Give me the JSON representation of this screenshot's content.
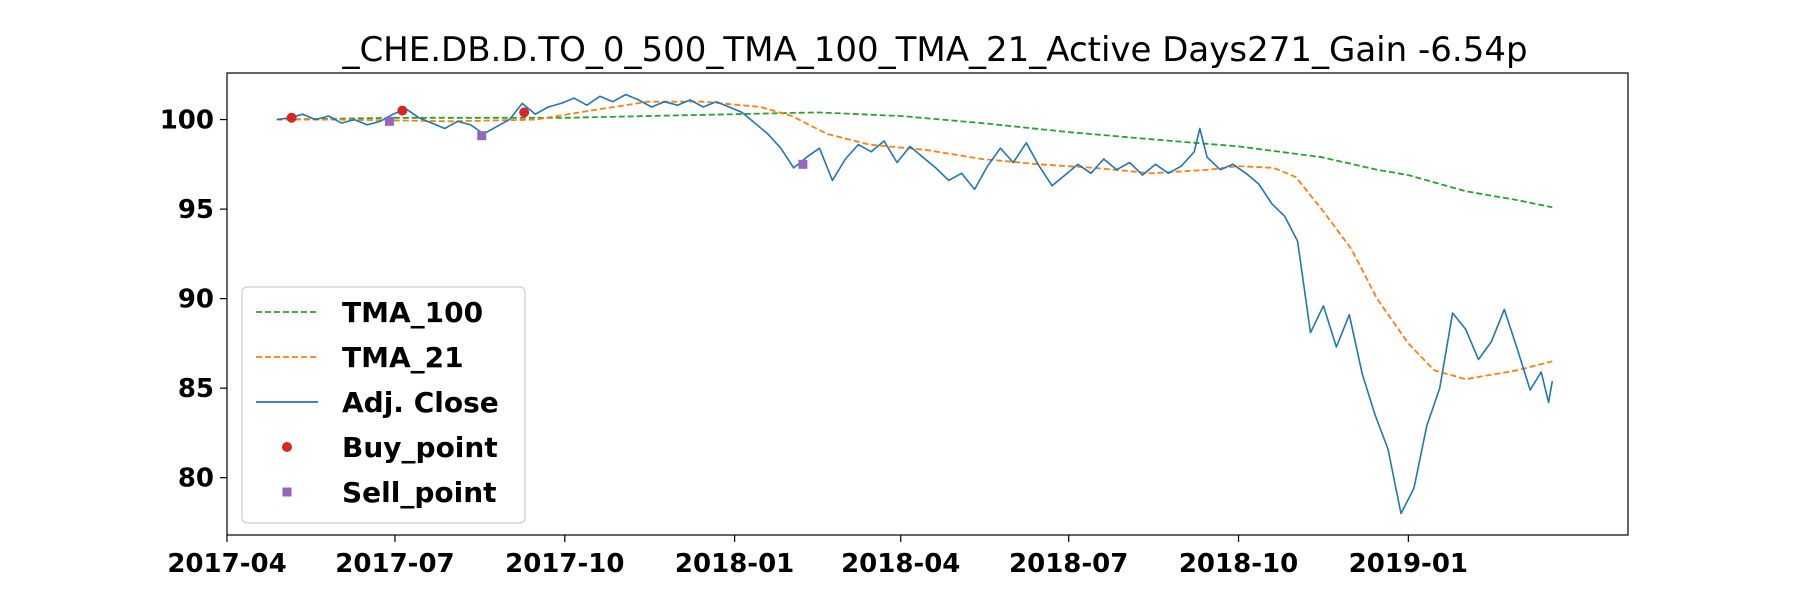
{
  "chart_data": {
    "type": "line",
    "title": "_CHE.DB.D.TO_0_500_TMA_100_TMA_21_Active Days271_Gain  -6.54p",
    "xlabel": "",
    "ylabel": "",
    "xlim": [
      "2017-04-01",
      "2019-04-30"
    ],
    "ylim": [
      76.8,
      102.6
    ],
    "x_ticks": [
      "2017-04",
      "2017-07",
      "2017-10",
      "2018-01",
      "2018-04",
      "2018-07",
      "2018-10",
      "2019-01"
    ],
    "y_ticks": [
      80,
      85,
      90,
      95,
      100
    ],
    "grid": false,
    "legend_position": "lower-left",
    "colors": {
      "adj_close": "#1f77b4",
      "tma_21": "#ff7f0e",
      "tma_100": "#2ca02c",
      "buy": "#d62728",
      "sell": "#9467bd"
    },
    "series": [
      {
        "name": "Adj. Close",
        "style": "solid",
        "points": [
          [
            "2017-04-28",
            100.0
          ],
          [
            "2017-05-05",
            100.1
          ],
          [
            "2017-05-12",
            100.3
          ],
          [
            "2017-05-19",
            100.0
          ],
          [
            "2017-05-26",
            100.2
          ],
          [
            "2017-06-02",
            99.8
          ],
          [
            "2017-06-09",
            100.0
          ],
          [
            "2017-06-16",
            99.7
          ],
          [
            "2017-06-23",
            99.9
          ],
          [
            "2017-06-30",
            100.3
          ],
          [
            "2017-07-07",
            100.6
          ],
          [
            "2017-07-14",
            100.1
          ],
          [
            "2017-07-21",
            99.8
          ],
          [
            "2017-07-28",
            99.5
          ],
          [
            "2017-08-04",
            99.9
          ],
          [
            "2017-08-11",
            99.7
          ],
          [
            "2017-08-18",
            99.2
          ],
          [
            "2017-08-25",
            99.6
          ],
          [
            "2017-09-01",
            100.0
          ],
          [
            "2017-09-08",
            100.9
          ],
          [
            "2017-09-15",
            100.3
          ],
          [
            "2017-09-22",
            100.7
          ],
          [
            "2017-09-29",
            100.9
          ],
          [
            "2017-10-06",
            101.2
          ],
          [
            "2017-10-13",
            100.8
          ],
          [
            "2017-10-20",
            101.3
          ],
          [
            "2017-10-27",
            101.0
          ],
          [
            "2017-11-03",
            101.4
          ],
          [
            "2017-11-10",
            101.1
          ],
          [
            "2017-11-17",
            100.7
          ],
          [
            "2017-11-24",
            101.0
          ],
          [
            "2017-12-01",
            100.8
          ],
          [
            "2017-12-08",
            101.1
          ],
          [
            "2017-12-15",
            100.7
          ],
          [
            "2017-12-22",
            101.0
          ],
          [
            "2017-12-29",
            100.7
          ],
          [
            "2018-01-05",
            100.4
          ],
          [
            "2018-01-12",
            99.8
          ],
          [
            "2018-01-19",
            99.2
          ],
          [
            "2018-01-26",
            98.4
          ],
          [
            "2018-02-02",
            97.3
          ],
          [
            "2018-02-09",
            97.9
          ],
          [
            "2018-02-16",
            98.4
          ],
          [
            "2018-02-23",
            96.6
          ],
          [
            "2018-03-02",
            97.8
          ],
          [
            "2018-03-09",
            98.6
          ],
          [
            "2018-03-16",
            98.2
          ],
          [
            "2018-03-23",
            98.8
          ],
          [
            "2018-03-30",
            97.6
          ],
          [
            "2018-04-06",
            98.5
          ],
          [
            "2018-04-13",
            97.9
          ],
          [
            "2018-04-20",
            97.3
          ],
          [
            "2018-04-27",
            96.6
          ],
          [
            "2018-05-04",
            97.0
          ],
          [
            "2018-05-11",
            96.1
          ],
          [
            "2018-05-18",
            97.4
          ],
          [
            "2018-05-25",
            98.4
          ],
          [
            "2018-06-01",
            97.6
          ],
          [
            "2018-06-08",
            98.7
          ],
          [
            "2018-06-15",
            97.4
          ],
          [
            "2018-06-22",
            96.3
          ],
          [
            "2018-06-29",
            96.9
          ],
          [
            "2018-07-06",
            97.5
          ],
          [
            "2018-07-13",
            97.0
          ],
          [
            "2018-07-20",
            97.8
          ],
          [
            "2018-07-27",
            97.2
          ],
          [
            "2018-08-03",
            97.6
          ],
          [
            "2018-08-10",
            96.9
          ],
          [
            "2018-08-17",
            97.5
          ],
          [
            "2018-08-24",
            97.0
          ],
          [
            "2018-08-31",
            97.4
          ],
          [
            "2018-09-07",
            98.2
          ],
          [
            "2018-09-10",
            99.5
          ],
          [
            "2018-09-14",
            97.9
          ],
          [
            "2018-09-21",
            97.2
          ],
          [
            "2018-09-28",
            97.5
          ],
          [
            "2018-10-05",
            97.0
          ],
          [
            "2018-10-12",
            96.4
          ],
          [
            "2018-10-19",
            95.3
          ],
          [
            "2018-10-26",
            94.6
          ],
          [
            "2018-11-02",
            93.2
          ],
          [
            "2018-11-09",
            88.1
          ],
          [
            "2018-11-16",
            89.6
          ],
          [
            "2018-11-23",
            87.3
          ],
          [
            "2018-11-30",
            89.1
          ],
          [
            "2018-12-07",
            85.8
          ],
          [
            "2018-12-14",
            83.5
          ],
          [
            "2018-12-21",
            81.6
          ],
          [
            "2018-12-28",
            78.0
          ],
          [
            "2019-01-04",
            79.4
          ],
          [
            "2019-01-11",
            82.9
          ],
          [
            "2019-01-18",
            85.0
          ],
          [
            "2019-01-25",
            89.2
          ],
          [
            "2019-02-01",
            88.3
          ],
          [
            "2019-02-08",
            86.6
          ],
          [
            "2019-02-15",
            87.6
          ],
          [
            "2019-02-22",
            89.4
          ],
          [
            "2019-03-01",
            87.2
          ],
          [
            "2019-03-08",
            84.9
          ],
          [
            "2019-03-14",
            85.9
          ],
          [
            "2019-03-18",
            84.2
          ],
          [
            "2019-03-20",
            85.4
          ]
        ]
      },
      {
        "name": "TMA_21",
        "style": "dashed",
        "points": [
          [
            "2017-04-28",
            100.0
          ],
          [
            "2017-06-01",
            100.0
          ],
          [
            "2017-08-01",
            99.9
          ],
          [
            "2017-09-15",
            100.0
          ],
          [
            "2017-10-15",
            100.5
          ],
          [
            "2017-11-15",
            101.0
          ],
          [
            "2017-12-15",
            101.0
          ],
          [
            "2018-01-15",
            100.7
          ],
          [
            "2018-02-01",
            100.2
          ],
          [
            "2018-02-20",
            99.2
          ],
          [
            "2018-03-15",
            98.6
          ],
          [
            "2018-04-15",
            98.3
          ],
          [
            "2018-05-15",
            97.8
          ],
          [
            "2018-06-15",
            97.5
          ],
          [
            "2018-07-15",
            97.3
          ],
          [
            "2018-08-15",
            97.0
          ],
          [
            "2018-09-15",
            97.2
          ],
          [
            "2018-10-01",
            97.4
          ],
          [
            "2018-10-20",
            97.3
          ],
          [
            "2018-11-01",
            96.8
          ],
          [
            "2018-11-15",
            95.0
          ],
          [
            "2018-12-01",
            92.8
          ],
          [
            "2018-12-15",
            90.0
          ],
          [
            "2019-01-01",
            87.5
          ],
          [
            "2019-01-15",
            86.0
          ],
          [
            "2019-02-01",
            85.5
          ],
          [
            "2019-03-01",
            86.0
          ],
          [
            "2019-03-20",
            86.5
          ]
        ]
      },
      {
        "name": "TMA_100",
        "style": "dashed",
        "points": [
          [
            "2017-04-28",
            100.0
          ],
          [
            "2017-07-01",
            100.1
          ],
          [
            "2017-10-01",
            100.1
          ],
          [
            "2018-01-01",
            100.3
          ],
          [
            "2018-02-15",
            100.4
          ],
          [
            "2018-04-01",
            100.2
          ],
          [
            "2018-05-15",
            99.8
          ],
          [
            "2018-07-01",
            99.3
          ],
          [
            "2018-08-15",
            98.9
          ],
          [
            "2018-10-01",
            98.5
          ],
          [
            "2018-11-15",
            97.9
          ],
          [
            "2018-12-15",
            97.2
          ],
          [
            "2019-01-01",
            96.9
          ],
          [
            "2019-02-01",
            96.0
          ],
          [
            "2019-03-01",
            95.5
          ],
          [
            "2019-03-20",
            95.1
          ]
        ]
      },
      {
        "name": "Buy_point",
        "style": "marker-circle",
        "points": [
          [
            "2017-05-06",
            100.1
          ],
          [
            "2017-07-05",
            100.5
          ],
          [
            "2017-09-09",
            100.4
          ]
        ]
      },
      {
        "name": "Sell_point",
        "style": "marker-square",
        "points": [
          [
            "2017-06-28",
            99.9
          ],
          [
            "2017-08-17",
            99.1
          ],
          [
            "2018-02-07",
            97.5
          ]
        ]
      }
    ]
  }
}
